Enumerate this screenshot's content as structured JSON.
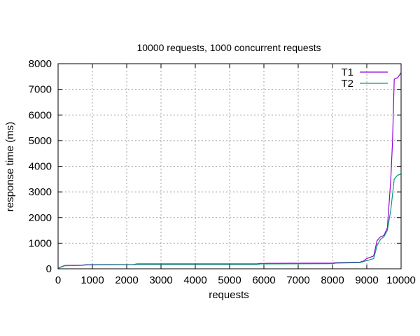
{
  "chart_data": {
    "type": "line",
    "title": "10000 requests, 1000 concurrent requests",
    "xlabel": "requests",
    "ylabel": "response time (ms)",
    "xlim": [
      0,
      10000
    ],
    "ylim": [
      0,
      8000
    ],
    "xticks": [
      0,
      1000,
      2000,
      3000,
      4000,
      5000,
      6000,
      7000,
      8000,
      9000,
      10000
    ],
    "yticks": [
      0,
      1000,
      2000,
      3000,
      4000,
      5000,
      6000,
      7000,
      8000
    ],
    "grid": true,
    "legend_position": "top-right",
    "series": [
      {
        "name": "T1",
        "color": "#9400d3",
        "points": [
          [
            0,
            0
          ],
          [
            50,
            60
          ],
          [
            200,
            130
          ],
          [
            700,
            140
          ],
          [
            800,
            160
          ],
          [
            2200,
            170
          ],
          [
            2300,
            190
          ],
          [
            5800,
            190
          ],
          [
            5900,
            210
          ],
          [
            8000,
            220
          ],
          [
            8100,
            240
          ],
          [
            8800,
            260
          ],
          [
            8900,
            300
          ],
          [
            9000,
            400
          ],
          [
            9200,
            500
          ],
          [
            9300,
            1100
          ],
          [
            9400,
            1250
          ],
          [
            9500,
            1300
          ],
          [
            9600,
            1600
          ],
          [
            9700,
            3500
          ],
          [
            9750,
            5000
          ],
          [
            9800,
            7400
          ],
          [
            9900,
            7450
          ],
          [
            10000,
            7650
          ]
        ]
      },
      {
        "name": "T2",
        "color": "#009e73",
        "points": [
          [
            0,
            0
          ],
          [
            50,
            50
          ],
          [
            200,
            120
          ],
          [
            700,
            130
          ],
          [
            800,
            150
          ],
          [
            2200,
            160
          ],
          [
            2300,
            170
          ],
          [
            5800,
            170
          ],
          [
            5900,
            190
          ],
          [
            8000,
            200
          ],
          [
            8100,
            220
          ],
          [
            8800,
            240
          ],
          [
            8900,
            280
          ],
          [
            9000,
            320
          ],
          [
            9200,
            400
          ],
          [
            9300,
            900
          ],
          [
            9400,
            1150
          ],
          [
            9500,
            1250
          ],
          [
            9600,
            1500
          ],
          [
            9700,
            2300
          ],
          [
            9800,
            3500
          ],
          [
            9900,
            3650
          ],
          [
            10000,
            3700
          ]
        ]
      }
    ]
  }
}
